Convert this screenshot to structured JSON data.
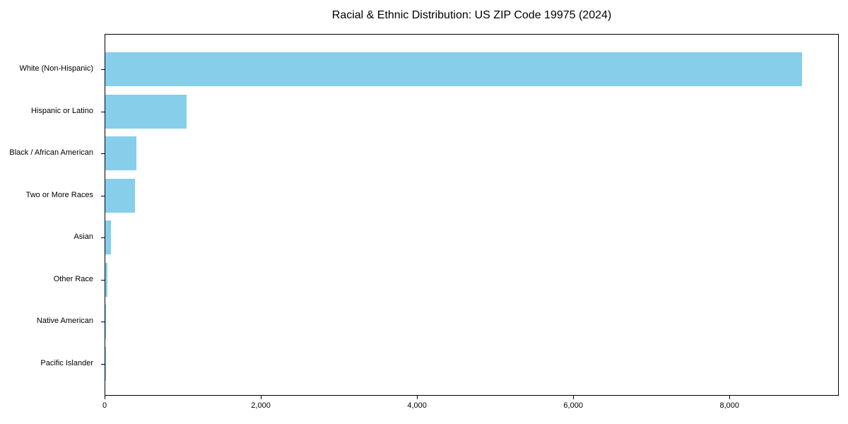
{
  "title": "Racial & Ethnic Distribution: US ZIP Code 19975 (2024)",
  "chart_data": {
    "type": "bar",
    "orientation": "horizontal",
    "title": "Racial & Ethnic Distribution: US ZIP Code 19975 (2024)",
    "categories": [
      "White (Non-Hispanic)",
      "Hispanic or Latino",
      "Black / African American",
      "Two or More Races",
      "Asian",
      "Other Race",
      "Native American",
      "Pacific Islander"
    ],
    "values": [
      8940,
      1040,
      400,
      378,
      72,
      30,
      5,
      2
    ],
    "xlabel": "",
    "ylabel": "",
    "xlim": [
      0,
      9400
    ],
    "x_ticks": [
      0,
      2000,
      4000,
      6000,
      8000
    ],
    "x_tick_labels": [
      "0",
      "2,000",
      "4,000",
      "6,000",
      "8,000"
    ],
    "bar_color": "#87CEEB",
    "axis_color": "#000000",
    "text_color": "#000000",
    "background_color": "#FFFFFF",
    "grid": false,
    "legend_position": "none"
  }
}
